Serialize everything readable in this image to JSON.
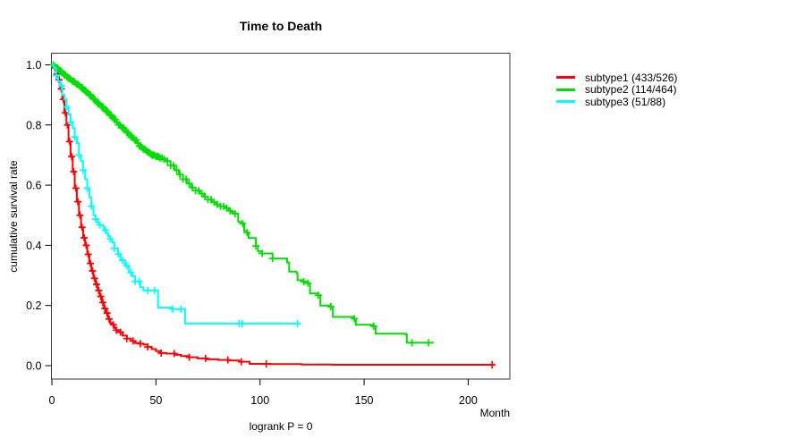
{
  "chart_data": {
    "type": "line",
    "subtype": "kaplan-meier-step",
    "title": "Time to Death",
    "xlabel": "Month",
    "ylabel": "cumulative survival rate",
    "annotation": "logrank P = 0",
    "xlim": [
      0,
      220
    ],
    "ylim": [
      0,
      1
    ],
    "x_ticks": [
      0,
      50,
      100,
      150,
      200
    ],
    "y_ticks": [
      0.0,
      0.2,
      0.4,
      0.6,
      0.8,
      1.0
    ],
    "grid": false,
    "legend_position": "right-outside",
    "series": [
      {
        "name": "subtype1 (433/526)",
        "color": "#ff0000",
        "events": 433,
        "n": 526,
        "points": [
          [
            0,
            1.0
          ],
          [
            1,
            0.99
          ],
          [
            2,
            0.97
          ],
          [
            3,
            0.95
          ],
          [
            4,
            0.92
          ],
          [
            5,
            0.885
          ],
          [
            6,
            0.84
          ],
          [
            7,
            0.8
          ],
          [
            8,
            0.745
          ],
          [
            9,
            0.695
          ],
          [
            10,
            0.645
          ],
          [
            11,
            0.59
          ],
          [
            12,
            0.545
          ],
          [
            13,
            0.5
          ],
          [
            14,
            0.46
          ],
          [
            15,
            0.425
          ],
          [
            16,
            0.4
          ],
          [
            17,
            0.37
          ],
          [
            18,
            0.34
          ],
          [
            19,
            0.315
          ],
          [
            20,
            0.29
          ],
          [
            21,
            0.27
          ],
          [
            22,
            0.25
          ],
          [
            23,
            0.23
          ],
          [
            24,
            0.21
          ],
          [
            25,
            0.19
          ],
          [
            26,
            0.175
          ],
          [
            27,
            0.155
          ],
          [
            28,
            0.142
          ],
          [
            29,
            0.136
          ],
          [
            30,
            0.125
          ],
          [
            31,
            0.118
          ],
          [
            32,
            0.111
          ],
          [
            34,
            0.1
          ],
          [
            36,
            0.09
          ],
          [
            38,
            0.082
          ],
          [
            40,
            0.075
          ],
          [
            42,
            0.073
          ],
          [
            44,
            0.07
          ],
          [
            46,
            0.062
          ],
          [
            48,
            0.055
          ],
          [
            50,
            0.048
          ],
          [
            52,
            0.042
          ],
          [
            55,
            0.04
          ],
          [
            59,
            0.036
          ],
          [
            62,
            0.032
          ],
          [
            66,
            0.028
          ],
          [
            70,
            0.024
          ],
          [
            74,
            0.021
          ],
          [
            80,
            0.019
          ],
          [
            85,
            0.017
          ],
          [
            90,
            0.013
          ],
          [
            95,
            0.006
          ],
          [
            105,
            0.005
          ],
          [
            120,
            0.004
          ],
          [
            135,
            0.003
          ],
          [
            211.5,
            0.003
          ]
        ],
        "censor_times": [
          1.5,
          2.5,
          3.5,
          4.5,
          5.5,
          6.5,
          7.5,
          8.5,
          9.5,
          10.5,
          11.5,
          12.5,
          13.5,
          14.5,
          15.5,
          16.5,
          17.5,
          18.5,
          19.5,
          20.5,
          21.5,
          22.5,
          23.5,
          24.5,
          25.5,
          26.5,
          27.5,
          29.5,
          31,
          33,
          36,
          39,
          42.5,
          46,
          52.5,
          58.8,
          66,
          73.8,
          84.5,
          91,
          103,
          211.5
        ]
      },
      {
        "name": "subtype2 (114/464)",
        "color": "#00dd00",
        "events": 114,
        "n": 464,
        "points": [
          [
            0,
            1.0
          ],
          [
            1,
            0.995
          ],
          [
            2,
            0.99
          ],
          [
            3,
            0.985
          ],
          [
            4,
            0.978
          ],
          [
            5,
            0.972
          ],
          [
            6,
            0.966
          ],
          [
            7,
            0.96
          ],
          [
            8,
            0.955
          ],
          [
            9,
            0.95
          ],
          [
            10,
            0.945
          ],
          [
            11,
            0.94
          ],
          [
            12,
            0.935
          ],
          [
            13,
            0.93
          ],
          [
            14,
            0.925
          ],
          [
            15,
            0.918
          ],
          [
            16,
            0.912
          ],
          [
            17,
            0.906
          ],
          [
            18,
            0.9
          ],
          [
            19,
            0.893
          ],
          [
            20,
            0.886
          ],
          [
            21,
            0.878
          ],
          [
            22,
            0.872
          ],
          [
            23,
            0.866
          ],
          [
            24,
            0.86
          ],
          [
            25,
            0.853
          ],
          [
            26,
            0.846
          ],
          [
            27,
            0.84
          ],
          [
            28,
            0.832
          ],
          [
            29,
            0.825
          ],
          [
            30,
            0.818
          ],
          [
            31,
            0.81
          ],
          [
            32,
            0.8
          ],
          [
            33,
            0.795
          ],
          [
            34,
            0.79
          ],
          [
            35,
            0.783
          ],
          [
            36,
            0.775
          ],
          [
            37,
            0.768
          ],
          [
            38,
            0.76
          ],
          [
            39,
            0.755
          ],
          [
            40,
            0.75
          ],
          [
            41,
            0.74
          ],
          [
            42,
            0.73
          ],
          [
            43,
            0.725
          ],
          [
            44,
            0.72
          ],
          [
            45,
            0.715
          ],
          [
            46,
            0.71
          ],
          [
            47,
            0.705
          ],
          [
            48,
            0.7
          ],
          [
            50,
            0.695
          ],
          [
            52,
            0.69
          ],
          [
            54,
            0.686
          ],
          [
            55,
            0.68
          ],
          [
            57,
            0.665
          ],
          [
            59,
            0.65
          ],
          [
            61,
            0.635
          ],
          [
            63,
            0.62
          ],
          [
            65,
            0.605
          ],
          [
            67,
            0.592
          ],
          [
            69,
            0.582
          ],
          [
            71,
            0.572
          ],
          [
            73,
            0.562
          ],
          [
            75,
            0.552
          ],
          [
            77,
            0.543
          ],
          [
            79,
            0.536
          ],
          [
            81,
            0.53
          ],
          [
            83,
            0.524
          ],
          [
            85,
            0.515
          ],
          [
            86,
            0.51
          ],
          [
            88,
            0.505
          ],
          [
            89.5,
            0.478
          ],
          [
            91.7,
            0.472
          ],
          [
            92.4,
            0.448
          ],
          [
            93.8,
            0.442
          ],
          [
            94.5,
            0.424
          ],
          [
            98,
            0.398
          ],
          [
            99,
            0.38
          ],
          [
            101,
            0.373
          ],
          [
            106,
            0.356
          ],
          [
            113,
            0.343
          ],
          [
            114,
            0.313
          ],
          [
            117.5,
            0.308
          ],
          [
            118,
            0.284
          ],
          [
            121,
            0.279
          ],
          [
            123,
            0.274
          ],
          [
            124,
            0.24
          ],
          [
            128,
            0.234
          ],
          [
            129,
            0.2
          ],
          [
            134,
            0.196
          ],
          [
            135,
            0.162
          ],
          [
            145,
            0.156
          ],
          [
            146,
            0.136
          ],
          [
            154.5,
            0.131
          ],
          [
            155.5,
            0.106
          ],
          [
            169.5,
            0.105
          ],
          [
            170.5,
            0.076
          ],
          [
            183,
            0.073
          ]
        ],
        "censor_times": [
          0.7,
          1.3,
          2,
          2.6,
          3.3,
          4,
          4.6,
          5.3,
          6,
          6.6,
          7.3,
          8,
          8.6,
          9.3,
          10,
          10.6,
          11.3,
          12,
          12.6,
          13.3,
          14,
          14.6,
          15.3,
          16,
          16.6,
          17.3,
          18,
          18.6,
          19.3,
          20,
          20.6,
          21.3,
          22,
          22.6,
          23.3,
          24,
          24.6,
          25.3,
          26,
          26.6,
          27.3,
          28,
          28.6,
          29.3,
          30,
          30.6,
          31.3,
          32,
          32.6,
          33.3,
          34,
          34.6,
          35.3,
          36,
          36.6,
          37.3,
          38,
          38.6,
          39.3,
          40,
          40.6,
          41.3,
          42,
          42.6,
          43.3,
          44,
          44.6,
          45.3,
          46,
          46.6,
          47.3,
          48,
          48.6,
          49.3,
          50,
          50.6,
          51.3,
          52,
          53,
          54,
          55.5,
          57,
          58.5,
          60,
          61.5,
          63,
          64.5,
          66,
          67.5,
          69,
          70.5,
          72,
          73.5,
          75,
          76.5,
          78,
          79.5,
          81,
          82.5,
          84,
          85.6,
          88,
          91.7,
          93.8,
          98,
          101,
          106,
          121,
          123,
          128,
          134,
          145.3,
          154.6,
          173,
          181
        ]
      },
      {
        "name": "subtype3 (51/88)",
        "color": "#00ffff",
        "events": 51,
        "n": 88,
        "points": [
          [
            0,
            1.0
          ],
          [
            1,
            0.99
          ],
          [
            2,
            0.965
          ],
          [
            3,
            0.945
          ],
          [
            4,
            0.93
          ],
          [
            5,
            0.9
          ],
          [
            6,
            0.885
          ],
          [
            7,
            0.86
          ],
          [
            8,
            0.835
          ],
          [
            9,
            0.81
          ],
          [
            10,
            0.79
          ],
          [
            11,
            0.76
          ],
          [
            12,
            0.74
          ],
          [
            13,
            0.7
          ],
          [
            14,
            0.68
          ],
          [
            15,
            0.65
          ],
          [
            16,
            0.62
          ],
          [
            17,
            0.59
          ],
          [
            18,
            0.56
          ],
          [
            19,
            0.53
          ],
          [
            20,
            0.5
          ],
          [
            21,
            0.487
          ],
          [
            22,
            0.476
          ],
          [
            23,
            0.468
          ],
          [
            23.6,
            0.466
          ],
          [
            25,
            0.45
          ],
          [
            26,
            0.44
          ],
          [
            27,
            0.43
          ],
          [
            27.9,
            0.421
          ],
          [
            29,
            0.41
          ],
          [
            30,
            0.39
          ],
          [
            31.8,
            0.371
          ],
          [
            33,
            0.35
          ],
          [
            35.2,
            0.332
          ],
          [
            37,
            0.31
          ],
          [
            38.6,
            0.297
          ],
          [
            40,
            0.28
          ],
          [
            42.5,
            0.261
          ],
          [
            44,
            0.25
          ],
          [
            51,
            0.193
          ],
          [
            58,
            0.188
          ],
          [
            64,
            0.14
          ],
          [
            118,
            0.14
          ]
        ],
        "censor_times": [
          2,
          4.7,
          7,
          9,
          11,
          13,
          15,
          17,
          19,
          21,
          23,
          25.8,
          28,
          30,
          32,
          34,
          36,
          38,
          40,
          42,
          46,
          49.3,
          58,
          62,
          90,
          91.5,
          118
        ]
      }
    ]
  }
}
